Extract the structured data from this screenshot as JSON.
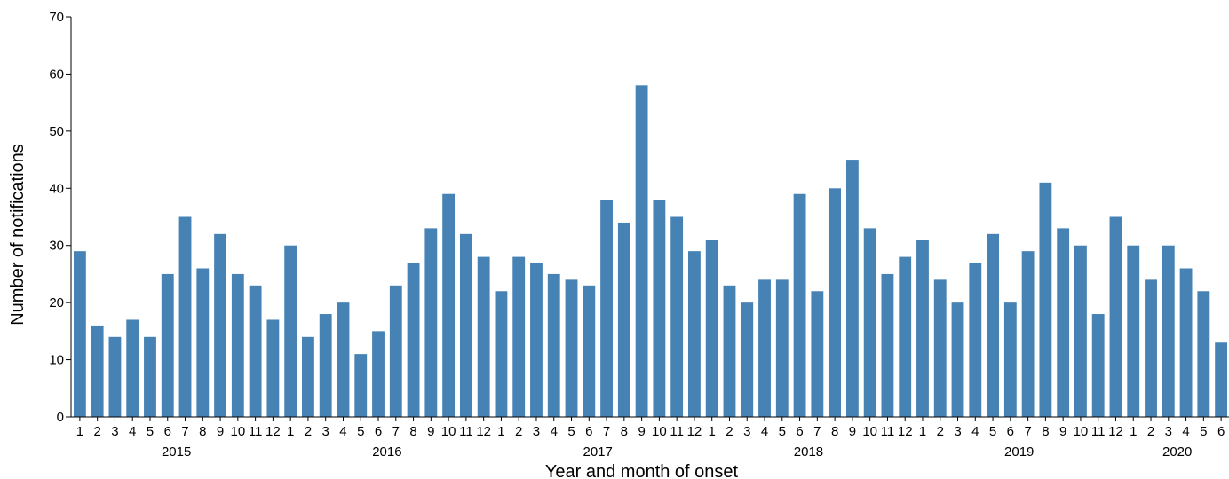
{
  "chart_data": {
    "type": "bar",
    "title": "",
    "xlabel": "Year and month of onset",
    "ylabel": "Number of notifications",
    "ylim": [
      0,
      70
    ],
    "yticks": [
      0,
      10,
      20,
      30,
      40,
      50,
      60,
      70
    ],
    "grid": false,
    "legend": "none",
    "bar_color": "#4682B4",
    "years": [
      "2015",
      "2016",
      "2017",
      "2018",
      "2019",
      "2020"
    ],
    "categories": [
      "1",
      "2",
      "3",
      "4",
      "5",
      "6",
      "7",
      "8",
      "9",
      "10",
      "11",
      "12",
      "1",
      "2",
      "3",
      "4",
      "5",
      "6",
      "7",
      "8",
      "9",
      "10",
      "11",
      "12",
      "1",
      "2",
      "3",
      "4",
      "5",
      "6",
      "7",
      "8",
      "9",
      "10",
      "11",
      "12",
      "1",
      "2",
      "3",
      "4",
      "5",
      "6",
      "7",
      "8",
      "9",
      "10",
      "11",
      "12",
      "1",
      "2",
      "3",
      "4",
      "5",
      "6",
      "7",
      "8",
      "9",
      "10",
      "11",
      "12",
      "1",
      "2",
      "3",
      "4",
      "5",
      "6"
    ],
    "values": [
      29,
      16,
      14,
      17,
      14,
      25,
      35,
      26,
      32,
      25,
      23,
      17,
      30,
      14,
      18,
      20,
      11,
      15,
      23,
      27,
      33,
      39,
      32,
      28,
      22,
      28,
      27,
      25,
      24,
      23,
      38,
      34,
      58,
      38,
      35,
      29,
      31,
      23,
      20,
      24,
      24,
      39,
      22,
      40,
      45,
      33,
      25,
      28,
      31,
      24,
      20,
      27,
      32,
      20,
      29,
      41,
      33,
      30,
      18,
      35,
      30,
      24,
      30,
      26,
      22,
      13
    ]
  }
}
